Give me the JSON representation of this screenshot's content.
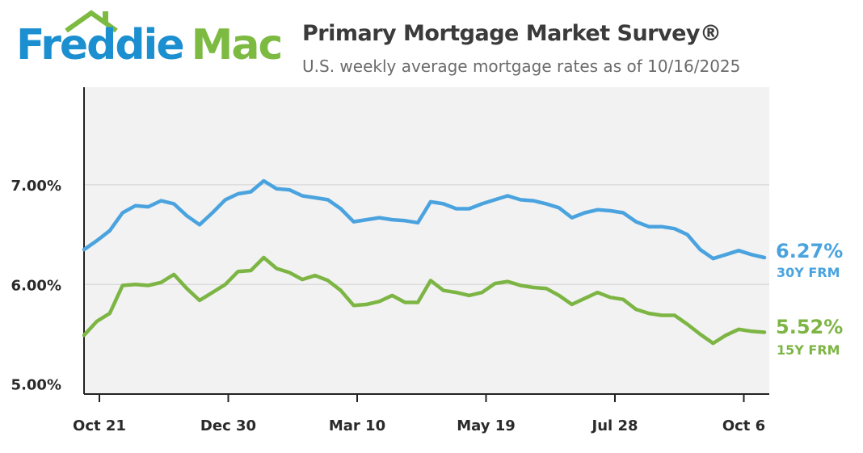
{
  "logo": {
    "part1": "Freddie",
    "part2": "Mac",
    "color_primary": "#1C8FD0",
    "color_secondary": "#7DBA41"
  },
  "header": {
    "title": "Primary Mortgage Market Survey®",
    "subtitle": "U.S. weekly average mortgage rates as of 10/16/2025"
  },
  "chart_data": {
    "type": "line",
    "title": "Primary Mortgage Market Survey®",
    "subtitle": "U.S. weekly average mortgage rates as of 10/16/2025",
    "xlabel": "",
    "ylabel": "",
    "x_tick_labels": [
      "Oct 21",
      "Dec 30",
      "Mar 10",
      "May 19",
      "Jul 28",
      "Oct 6"
    ],
    "y_ticks": [
      5.0,
      6.0,
      7.0
    ],
    "y_tick_labels": [
      "5.00%",
      "6.00%",
      "7.00%"
    ],
    "ylim": [
      4.9,
      7.98
    ],
    "grid": "horizontal",
    "series": [
      {
        "name": "30Y FRM",
        "color": "#4AA3DF",
        "end_label": "6.27%",
        "values": [
          6.35,
          6.44,
          6.54,
          6.72,
          6.79,
          6.78,
          6.84,
          6.81,
          6.69,
          6.6,
          6.72,
          6.85,
          6.91,
          6.93,
          7.04,
          6.96,
          6.95,
          6.89,
          6.87,
          6.85,
          6.76,
          6.63,
          6.65,
          6.67,
          6.65,
          6.64,
          6.62,
          6.83,
          6.81,
          6.76,
          6.76,
          6.81,
          6.85,
          6.89,
          6.85,
          6.84,
          6.81,
          6.77,
          6.67,
          6.72,
          6.75,
          6.74,
          6.72,
          6.63,
          6.58,
          6.58,
          6.56,
          6.5,
          6.35,
          6.26,
          6.3,
          6.34,
          6.3,
          6.27
        ]
      },
      {
        "name": "15Y FRM",
        "color": "#7DB544",
        "end_label": "5.52%",
        "values": [
          5.49,
          5.63,
          5.71,
          5.99,
          6.0,
          5.99,
          6.02,
          6.1,
          5.96,
          5.84,
          5.92,
          6.0,
          6.13,
          6.14,
          6.27,
          6.16,
          6.12,
          6.05,
          6.09,
          6.04,
          5.94,
          5.79,
          5.8,
          5.83,
          5.89,
          5.82,
          5.82,
          6.04,
          5.94,
          5.92,
          5.89,
          5.92,
          6.01,
          6.03,
          5.99,
          5.97,
          5.96,
          5.89,
          5.8,
          5.86,
          5.92,
          5.87,
          5.85,
          5.75,
          5.71,
          5.69,
          5.69,
          5.6,
          5.5,
          5.41,
          5.49,
          5.55,
          5.53,
          5.52
        ]
      }
    ]
  }
}
